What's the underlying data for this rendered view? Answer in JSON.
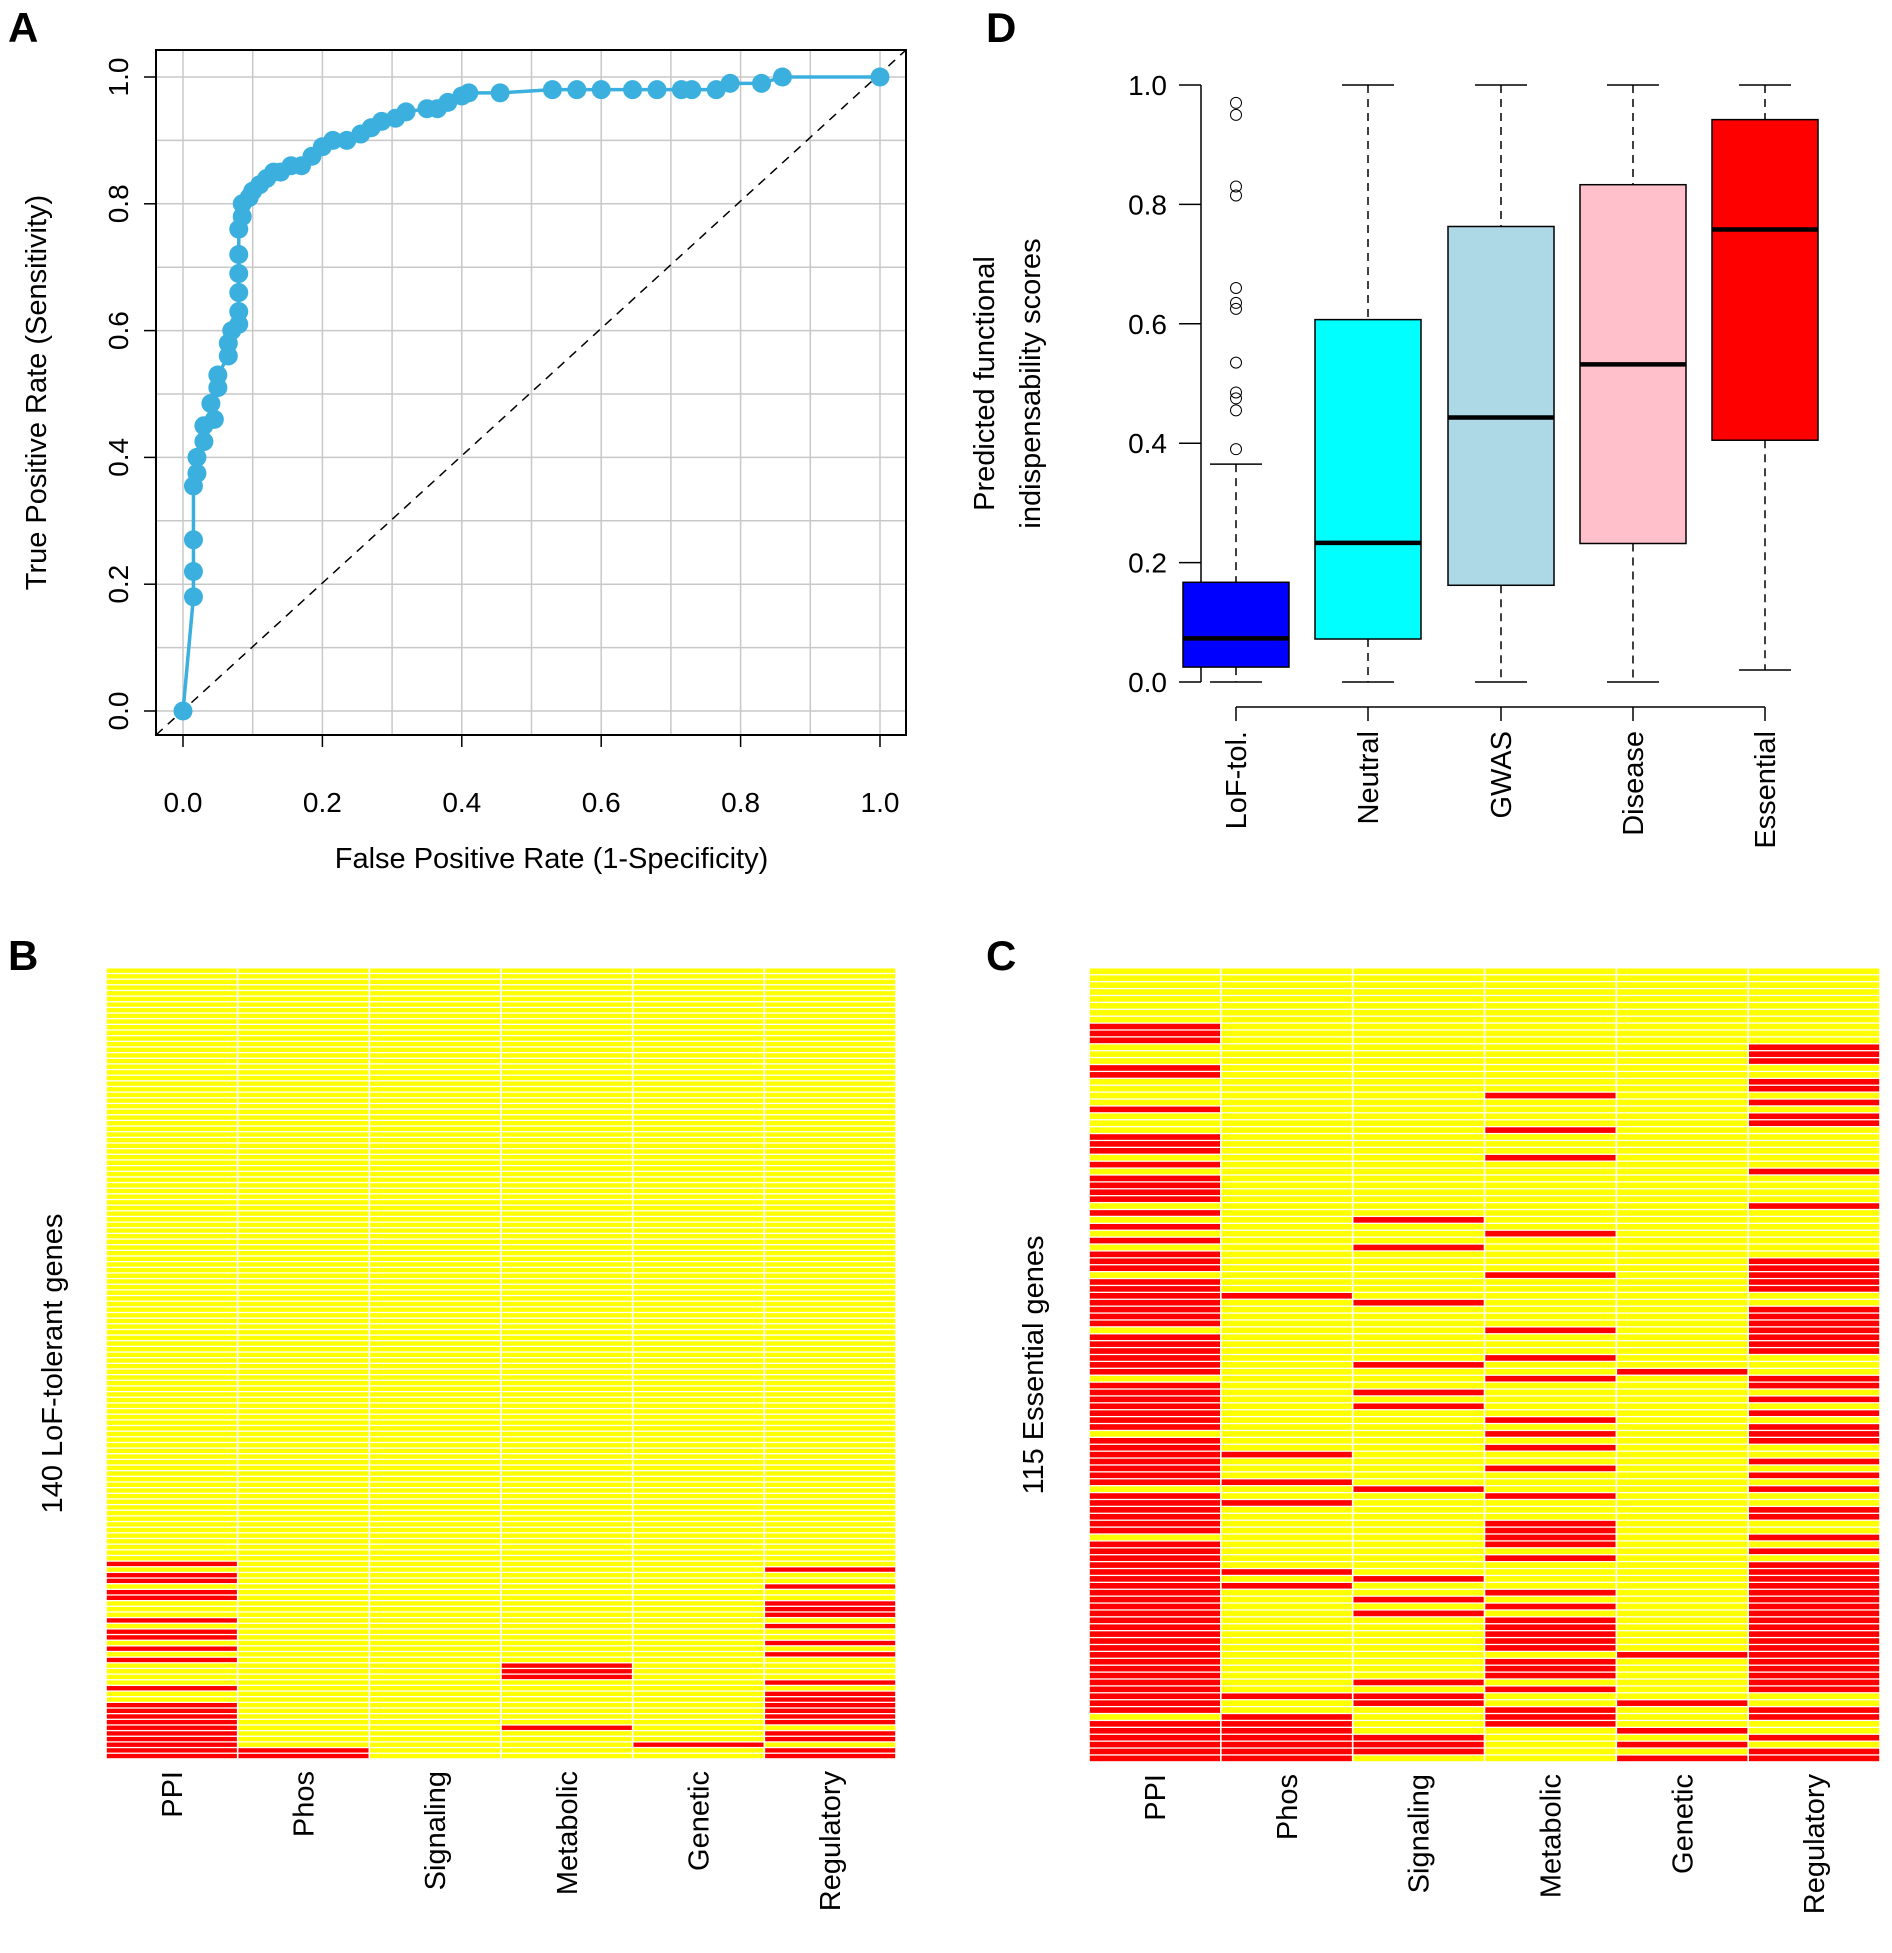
{
  "chart_data": [
    {
      "panel_label": "A",
      "type": "line",
      "xlabel": "False Positive Rate (1-Specificity)",
      "ylabel": "True Positive Rate (Sensitivity)",
      "xlim": [
        0,
        1
      ],
      "ylim": [
        0,
        1
      ],
      "xtick_labels": [
        "0.0",
        "0.2",
        "0.4",
        "0.6",
        "0.8",
        "1.0"
      ],
      "ytick_labels": [
        "0.0",
        "0.2",
        "0.4",
        "0.6",
        "0.8",
        "1.0"
      ],
      "grid": true,
      "grid_step": 0.1,
      "reference_line": "diagonal dashed",
      "color": "#3BB0DE",
      "points": [
        [
          0,
          0
        ],
        [
          0.015,
          0.18
        ],
        [
          0.015,
          0.22
        ],
        [
          0.015,
          0.27
        ],
        [
          0.015,
          0.355
        ],
        [
          0.02,
          0.375
        ],
        [
          0.02,
          0.4
        ],
        [
          0.03,
          0.425
        ],
        [
          0.03,
          0.45
        ],
        [
          0.045,
          0.46
        ],
        [
          0.04,
          0.485
        ],
        [
          0.05,
          0.51
        ],
        [
          0.05,
          0.53
        ],
        [
          0.065,
          0.56
        ],
        [
          0.065,
          0.58
        ],
        [
          0.07,
          0.6
        ],
        [
          0.08,
          0.61
        ],
        [
          0.08,
          0.63
        ],
        [
          0.08,
          0.66
        ],
        [
          0.08,
          0.69
        ],
        [
          0.08,
          0.72
        ],
        [
          0.08,
          0.76
        ],
        [
          0.085,
          0.78
        ],
        [
          0.085,
          0.8
        ],
        [
          0.095,
          0.81
        ],
        [
          0.1,
          0.82
        ],
        [
          0.11,
          0.83
        ],
        [
          0.12,
          0.84
        ],
        [
          0.13,
          0.85
        ],
        [
          0.14,
          0.85
        ],
        [
          0.155,
          0.86
        ],
        [
          0.17,
          0.86
        ],
        [
          0.185,
          0.875
        ],
        [
          0.2,
          0.89
        ],
        [
          0.215,
          0.9
        ],
        [
          0.235,
          0.9
        ],
        [
          0.255,
          0.91
        ],
        [
          0.27,
          0.92
        ],
        [
          0.285,
          0.93
        ],
        [
          0.305,
          0.935
        ],
        [
          0.32,
          0.945
        ],
        [
          0.35,
          0.95
        ],
        [
          0.365,
          0.95
        ],
        [
          0.38,
          0.96
        ],
        [
          0.4,
          0.97
        ],
        [
          0.41,
          0.975
        ],
        [
          0.455,
          0.975
        ],
        [
          0.53,
          0.98
        ],
        [
          0.565,
          0.98
        ],
        [
          0.6,
          0.98
        ],
        [
          0.645,
          0.98
        ],
        [
          0.68,
          0.98
        ],
        [
          0.715,
          0.98
        ],
        [
          0.73,
          0.98
        ],
        [
          0.765,
          0.98
        ],
        [
          0.785,
          0.99
        ],
        [
          0.83,
          0.99
        ],
        [
          0.86,
          1.0
        ],
        [
          1.0,
          1.0
        ]
      ]
    },
    {
      "panel_label": "D",
      "type": "box",
      "ylabel_lines": [
        "Predicted functional",
        "indispensability scores"
      ],
      "ylim": [
        0,
        1
      ],
      "ytick_labels": [
        "0.0",
        "0.2",
        "0.4",
        "0.6",
        "0.8",
        "1.0"
      ],
      "categories": [
        "LoF-tol.",
        "Neutral",
        "GWAS",
        "Disease",
        "Essential"
      ],
      "boxes": [
        {
          "color": "#0000FF",
          "whisker_low": 0.0,
          "q1": 0.025,
          "median": 0.073,
          "q3": 0.167,
          "whisker_high": 0.365,
          "outliers": [
            0.97,
            0.95,
            0.83,
            0.815,
            0.66,
            0.635,
            0.625,
            0.535,
            0.485,
            0.475,
            0.455,
            0.39
          ]
        },
        {
          "color": "#00FFFF",
          "whisker_low": 0.0,
          "q1": 0.072,
          "median": 0.233,
          "q3": 0.607,
          "whisker_high": 1.0,
          "outliers": []
        },
        {
          "color": "#ADD8E6",
          "whisker_low": 0.0,
          "q1": 0.162,
          "median": 0.443,
          "q3": 0.763,
          "whisker_high": 1.0,
          "outliers": []
        },
        {
          "color": "#FFC0CB",
          "whisker_low": 0.0,
          "q1": 0.232,
          "median": 0.532,
          "q3": 0.833,
          "whisker_high": 1.0,
          "outliers": []
        },
        {
          "color": "#FF0000",
          "whisker_low": 0.02,
          "q1": 0.405,
          "median": 0.758,
          "q3": 0.942,
          "whisker_high": 1.0,
          "outliers": []
        }
      ]
    },
    {
      "panel_label": "B",
      "type": "heatmap",
      "ylabel": "140 LoF-tolerant genes",
      "rows": 140,
      "categories": [
        "PPI",
        "Phos",
        "Signaling",
        "Metabolic",
        "Genetic",
        "Regulatory"
      ],
      "colors": {
        "absent": "#FFFF00",
        "present": "#FF0000"
      },
      "red_rows": [
        [
          106,
          108,
          109,
          111,
          112,
          116,
          118,
          119,
          121,
          123,
          128,
          131,
          132,
          133,
          134,
          135,
          136,
          137,
          138,
          139,
          140
        ],
        [
          139,
          140
        ],
        [],
        [
          124,
          125,
          126,
          135
        ],
        [
          138
        ],
        [
          107,
          110,
          113,
          114,
          115,
          117,
          120,
          122,
          127,
          129,
          130,
          131,
          132,
          133,
          134,
          136,
          137,
          139,
          140
        ]
      ]
    },
    {
      "panel_label": "C",
      "type": "heatmap",
      "ylabel": "115 Essential genes",
      "rows": 115,
      "categories": [
        "PPI",
        "Phos",
        "Signaling",
        "Metabolic",
        "Genetic",
        "Regulatory"
      ],
      "colors": {
        "absent": "#FFFF00",
        "present": "#FF0000"
      },
      "red_rows": [
        [
          9,
          10,
          11,
          15,
          16,
          21,
          25,
          26,
          27,
          29,
          31,
          32,
          33,
          34,
          36,
          38,
          40,
          42,
          43,
          44,
          46,
          47,
          48,
          49,
          50,
          51,
          52,
          54,
          55,
          56,
          57,
          58,
          59,
          61,
          62,
          63,
          64,
          65,
          66,
          67,
          69,
          70,
          71,
          72,
          73,
          74,
          75,
          77,
          78,
          79,
          80,
          81,
          82,
          84,
          85,
          86,
          87,
          88,
          89,
          90,
          91,
          92,
          93,
          94,
          95,
          96,
          97,
          98,
          99,
          100,
          101,
          102,
          103,
          104,
          105,
          106,
          107,
          108,
          110,
          111,
          112,
          113,
          114,
          115
        ],
        [
          48,
          71,
          75,
          78,
          88,
          90,
          106,
          109,
          110,
          111,
          112,
          113,
          114,
          115
        ],
        [
          37,
          41,
          49,
          58,
          62,
          64,
          76,
          89,
          92,
          94,
          104,
          106,
          107,
          112,
          113,
          114
        ],
        [
          19,
          24,
          28,
          39,
          45,
          53,
          57,
          60,
          66,
          68,
          70,
          73,
          77,
          81,
          82,
          83,
          84,
          86,
          91,
          93,
          95,
          96,
          97,
          98,
          99,
          101,
          102,
          103,
          105,
          108,
          109,
          110
        ],
        [
          59,
          100,
          107,
          111,
          113,
          115
        ],
        [
          12,
          13,
          14,
          17,
          18,
          20,
          22,
          23,
          30,
          35,
          43,
          44,
          45,
          46,
          47,
          50,
          51,
          52,
          53,
          54,
          55,
          56,
          60,
          61,
          63,
          65,
          67,
          68,
          69,
          72,
          74,
          76,
          79,
          80,
          83,
          85,
          87,
          88,
          89,
          90,
          91,
          92,
          93,
          94,
          95,
          96,
          97,
          98,
          99,
          100,
          101,
          102,
          103,
          104,
          105,
          108,
          109,
          112,
          114,
          115
        ]
      ]
    }
  ]
}
